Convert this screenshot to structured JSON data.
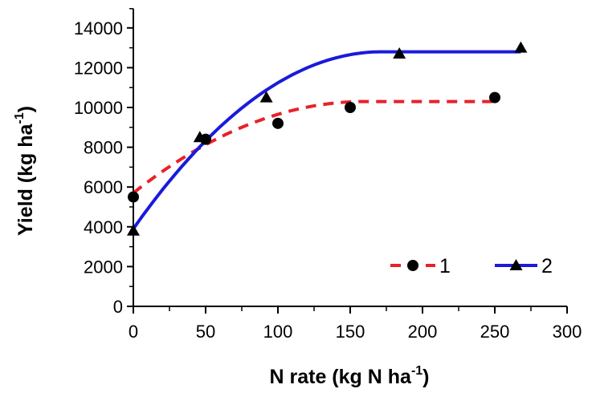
{
  "chart_data": {
    "type": "scatter",
    "xlabel_main": "N rate  (kg N ha",
    "xlabel_sup": "-1",
    "xlabel_end": ")",
    "ylabel_main": "Yield (kg ha",
    "ylabel_sup": "-1",
    "ylabel_end": ")",
    "xlim": [
      0,
      300
    ],
    "ylim": [
      0,
      15000
    ],
    "x_ticks": [
      0,
      50,
      100,
      150,
      200,
      250,
      300
    ],
    "y_ticks": [
      0,
      2000,
      4000,
      6000,
      8000,
      10000,
      12000,
      14000
    ],
    "x_tick_labels": [
      "0",
      "50",
      "100",
      "150",
      "200",
      "250",
      "300"
    ],
    "y_tick_labels": [
      "0",
      "2000",
      "4000",
      "6000",
      "8000",
      "10000",
      "12000",
      "14000"
    ],
    "grid": false,
    "legend_position": "bottom-right",
    "series": [
      {
        "name": "1",
        "marker": "circle",
        "line_style": "dashed",
        "color": "#e8212a",
        "points": [
          {
            "x": 0,
            "y": 5500
          },
          {
            "x": 50,
            "y": 8400
          },
          {
            "x": 100,
            "y": 9200
          },
          {
            "x": 150,
            "y": 10000
          },
          {
            "x": 250,
            "y": 10500
          }
        ],
        "fit": {
          "intercept": 5700,
          "plateau": 10300,
          "join_x": 160,
          "end_x": 250
        }
      },
      {
        "name": "2",
        "marker": "triangle",
        "line_style": "solid",
        "color": "#1a1adb",
        "points": [
          {
            "x": 0,
            "y": 3800
          },
          {
            "x": 46,
            "y": 8500
          },
          {
            "x": 92,
            "y": 10500
          },
          {
            "x": 184,
            "y": 12700
          },
          {
            "x": 268,
            "y": 13000
          }
        ],
        "fit": {
          "intercept": 3900,
          "plateau": 12800,
          "join_x": 172,
          "end_x": 268
        }
      }
    ]
  }
}
